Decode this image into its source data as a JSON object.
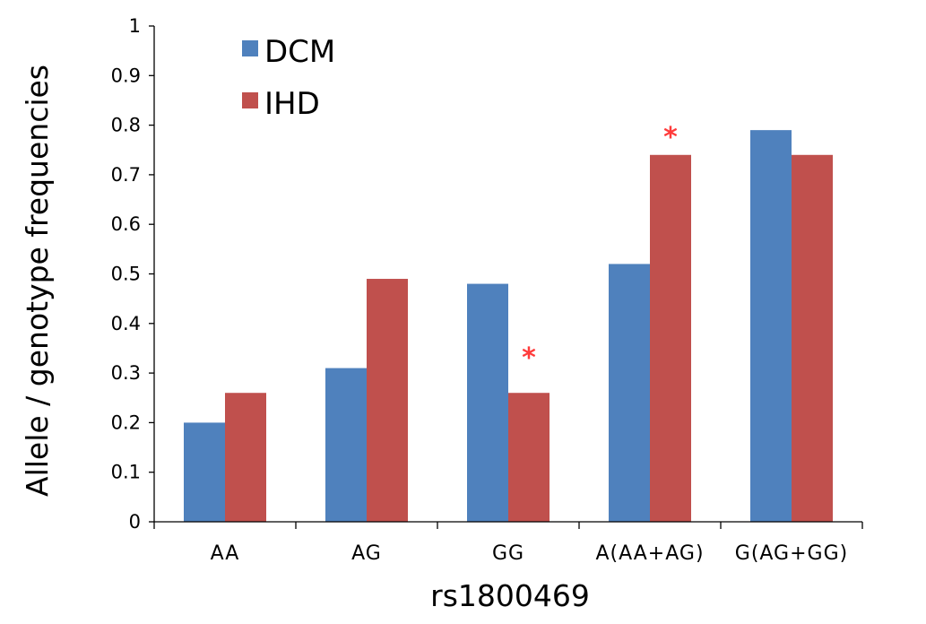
{
  "chart_data": {
    "type": "bar",
    "categories": [
      "AA",
      "AG",
      "GG",
      "A(AA+AG)",
      "G(AG+GG)"
    ],
    "series": [
      {
        "name": "DCM",
        "color": "#4F81BD",
        "values": [
          0.2,
          0.31,
          0.48,
          0.52,
          0.79
        ]
      },
      {
        "name": "IHD",
        "color": "#C0504D",
        "values": [
          0.26,
          0.49,
          0.26,
          0.74,
          0.74
        ]
      }
    ],
    "xlabel": "rs1800469",
    "ylabel": "Allele / genotype frequencies",
    "ylim": [
      0,
      1
    ],
    "yticks": [
      "0",
      "0.1",
      "0.2",
      "0.3",
      "0.4",
      "0.5",
      "0.6",
      "0.7",
      "0.8",
      "0.9",
      "1"
    ],
    "grid": false,
    "legend_position": "top-left",
    "annotations": [
      {
        "text": "*",
        "category": "GG",
        "series": "IHD",
        "value": 0.345,
        "color": "#FF3B3B"
      },
      {
        "text": "*",
        "category": "A(AA+AG)",
        "series": "IHD",
        "value": 0.79,
        "color": "#FF3B3B"
      }
    ]
  }
}
